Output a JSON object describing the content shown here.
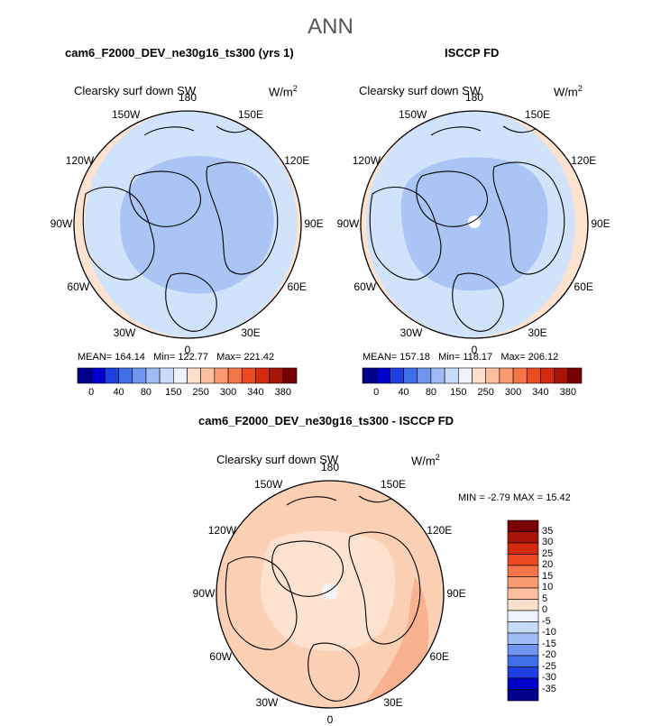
{
  "season": "ANN",
  "panels": [
    {
      "title": "cam6_F2000_DEV_ne30g16_ts300 (yrs 1)",
      "variable": "Clearsky surf down SW",
      "units": "W/m",
      "units_exp": "2",
      "stats": {
        "mean_label": "MEAN=",
        "mean": "164.14",
        "min_label": "Min=",
        "min": "122.77",
        "max_label": "Max=",
        "max": "221.42"
      },
      "inner_color": "#a9c4f5",
      "mid_color": "#d0e3fa",
      "outer_color": "#fde3cf",
      "pole_hole": false
    },
    {
      "title": "ISCCP FD",
      "variable": "Clearsky surf down SW",
      "units": "W/m",
      "units_exp": "2",
      "stats": {
        "mean_label": "MEAN=",
        "mean": "157.18",
        "min_label": "Min=",
        "min": "118.17",
        "max_label": "Max=",
        "max": "206.12"
      },
      "inner_color": "#a9c4f5",
      "mid_color": "#d0e3fa",
      "outer_color": "#fde3cf",
      "pole_hole": true
    }
  ],
  "diff_panel": {
    "title": "cam6_F2000_DEV_ne30g16_ts300 - ISCCP FD",
    "variable": "Clearsky surf down SW",
    "units": "W/m",
    "units_exp": "2",
    "min_label": "MIN =",
    "min": "-2.79",
    "max_label": "MAX =",
    "max": "15.42"
  },
  "longitude_labels": [
    "180",
    "150E",
    "120E",
    "90E",
    "60E",
    "30E",
    "0",
    "30W",
    "60W",
    "90W",
    "120W",
    "150W"
  ],
  "abs_colorbar": {
    "labels": [
      "0",
      "40",
      "80",
      "150",
      "250",
      "300",
      "340",
      "380"
    ],
    "colors": [
      "#00008b",
      "#0000c8",
      "#1f3fe0",
      "#3f6fe8",
      "#6f95ee",
      "#9fbcf4",
      "#c8dbf8",
      "#eef3fb",
      "#fde0cc",
      "#fbbfa0",
      "#f99a70",
      "#f57448",
      "#ee4a22",
      "#d42a10",
      "#a81508",
      "#780000"
    ]
  },
  "diff_colorbar": {
    "labels": [
      "35",
      "30",
      "25",
      "20",
      "15",
      "10",
      "5",
      "0",
      "-5",
      "-10",
      "-15",
      "-20",
      "-25",
      "-30",
      "-35"
    ],
    "colors": [
      "#780000",
      "#a81508",
      "#d42a10",
      "#ee4a22",
      "#f57448",
      "#f99a70",
      "#fbbfa0",
      "#fde0cc",
      "#eef3fb",
      "#c8dbf8",
      "#9fbcf4",
      "#6f95ee",
      "#3f6fe8",
      "#1f3fe0",
      "#0000c8",
      "#00008b"
    ]
  },
  "diff_colors": {
    "base": "#fbd0b4",
    "light": "#fde3cf",
    "white": "#f4f6fb",
    "strong": "#f9b290"
  }
}
